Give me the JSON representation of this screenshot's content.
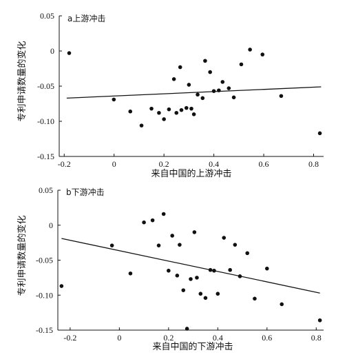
{
  "chart_data": [
    {
      "type": "scatter",
      "panel_label": "a上游冲击",
      "xlabel": "来自中国的上游冲击",
      "ylabel": "专利申请数量的变化",
      "xlim": [
        -0.22,
        0.84
      ],
      "ylim": [
        -0.15,
        0.05
      ],
      "xticks": [
        -0.2,
        0,
        0.2,
        0.4,
        0.6,
        0.8
      ],
      "xtick_labels": [
        "-0.2",
        "0",
        "0.2",
        "0.4",
        "0.6",
        "0.8"
      ],
      "yticks": [
        0.05,
        0,
        -0.05,
        -0.1,
        -0.15
      ],
      "ytick_labels": [
        "0.05",
        "0",
        "-0.05",
        "-0.10",
        "-0.15"
      ],
      "points": [
        [
          -0.18,
          -0.003
        ],
        [
          -0.001,
          -0.069
        ],
        [
          0.065,
          -0.086
        ],
        [
          0.11,
          -0.106
        ],
        [
          0.15,
          -0.082
        ],
        [
          0.18,
          -0.088
        ],
        [
          0.2,
          -0.097
        ],
        [
          0.22,
          -0.083
        ],
        [
          0.24,
          -0.04
        ],
        [
          0.25,
          -0.088
        ],
        [
          0.265,
          -0.023
        ],
        [
          0.27,
          -0.084
        ],
        [
          0.29,
          -0.081
        ],
        [
          0.3,
          -0.048
        ],
        [
          0.31,
          -0.082
        ],
        [
          0.32,
          -0.09
        ],
        [
          0.335,
          -0.062
        ],
        [
          0.355,
          -0.067
        ],
        [
          0.365,
          -0.014
        ],
        [
          0.385,
          -0.03
        ],
        [
          0.4,
          -0.057
        ],
        [
          0.42,
          -0.056
        ],
        [
          0.435,
          -0.044
        ],
        [
          0.46,
          -0.053
        ],
        [
          0.48,
          -0.066
        ],
        [
          0.51,
          -0.019
        ],
        [
          0.545,
          0.002
        ],
        [
          0.595,
          -0.005
        ],
        [
          0.67,
          -0.064
        ],
        [
          0.825,
          -0.117
        ]
      ],
      "fit_line": [
        [
          -0.19,
          -0.067
        ],
        [
          0.83,
          -0.051
        ]
      ]
    },
    {
      "type": "scatter",
      "panel_label": "b下游冲击",
      "xlabel": "来自中国的下游冲击",
      "ylabel": "专利申请数量的变化",
      "xlim": [
        -0.25,
        0.83
      ],
      "ylim": [
        -0.15,
        0.05
      ],
      "xticks": [
        -0.2,
        0,
        0.2,
        0.4,
        0.6,
        0.8
      ],
      "xtick_labels": [
        "-0.2",
        "0",
        "0.2",
        "0.4",
        "0.6",
        "0.8"
      ],
      "yticks": [
        0.05,
        0,
        -0.05,
        -0.1,
        -0.15
      ],
      "ytick_labels": [
        "0.05",
        "0",
        "-0.05",
        "-0.10",
        "-0.15"
      ],
      "points": [
        [
          -0.235,
          -0.087
        ],
        [
          -0.03,
          -0.029
        ],
        [
          0.045,
          -0.069
        ],
        [
          0.1,
          0.004
        ],
        [
          0.135,
          0.007
        ],
        [
          0.16,
          -0.029
        ],
        [
          0.18,
          0.016
        ],
        [
          0.2,
          -0.065
        ],
        [
          0.215,
          -0.015
        ],
        [
          0.235,
          -0.072
        ],
        [
          0.245,
          -0.028
        ],
        [
          0.26,
          -0.093
        ],
        [
          0.275,
          -0.148
        ],
        [
          0.29,
          -0.077
        ],
        [
          0.305,
          -0.01
        ],
        [
          0.315,
          -0.075
        ],
        [
          0.33,
          -0.098
        ],
        [
          0.35,
          -0.104
        ],
        [
          0.37,
          -0.064
        ],
        [
          0.385,
          -0.065
        ],
        [
          0.4,
          -0.098
        ],
        [
          0.425,
          -0.018
        ],
        [
          0.45,
          -0.064
        ],
        [
          0.47,
          -0.028
        ],
        [
          0.49,
          -0.073
        ],
        [
          0.52,
          -0.04
        ],
        [
          0.55,
          -0.105
        ],
        [
          0.6,
          -0.062
        ],
        [
          0.66,
          -0.113
        ],
        [
          0.815,
          -0.136
        ]
      ],
      "fit_line": [
        [
          -0.235,
          -0.019
        ],
        [
          0.815,
          -0.097
        ]
      ]
    }
  ]
}
